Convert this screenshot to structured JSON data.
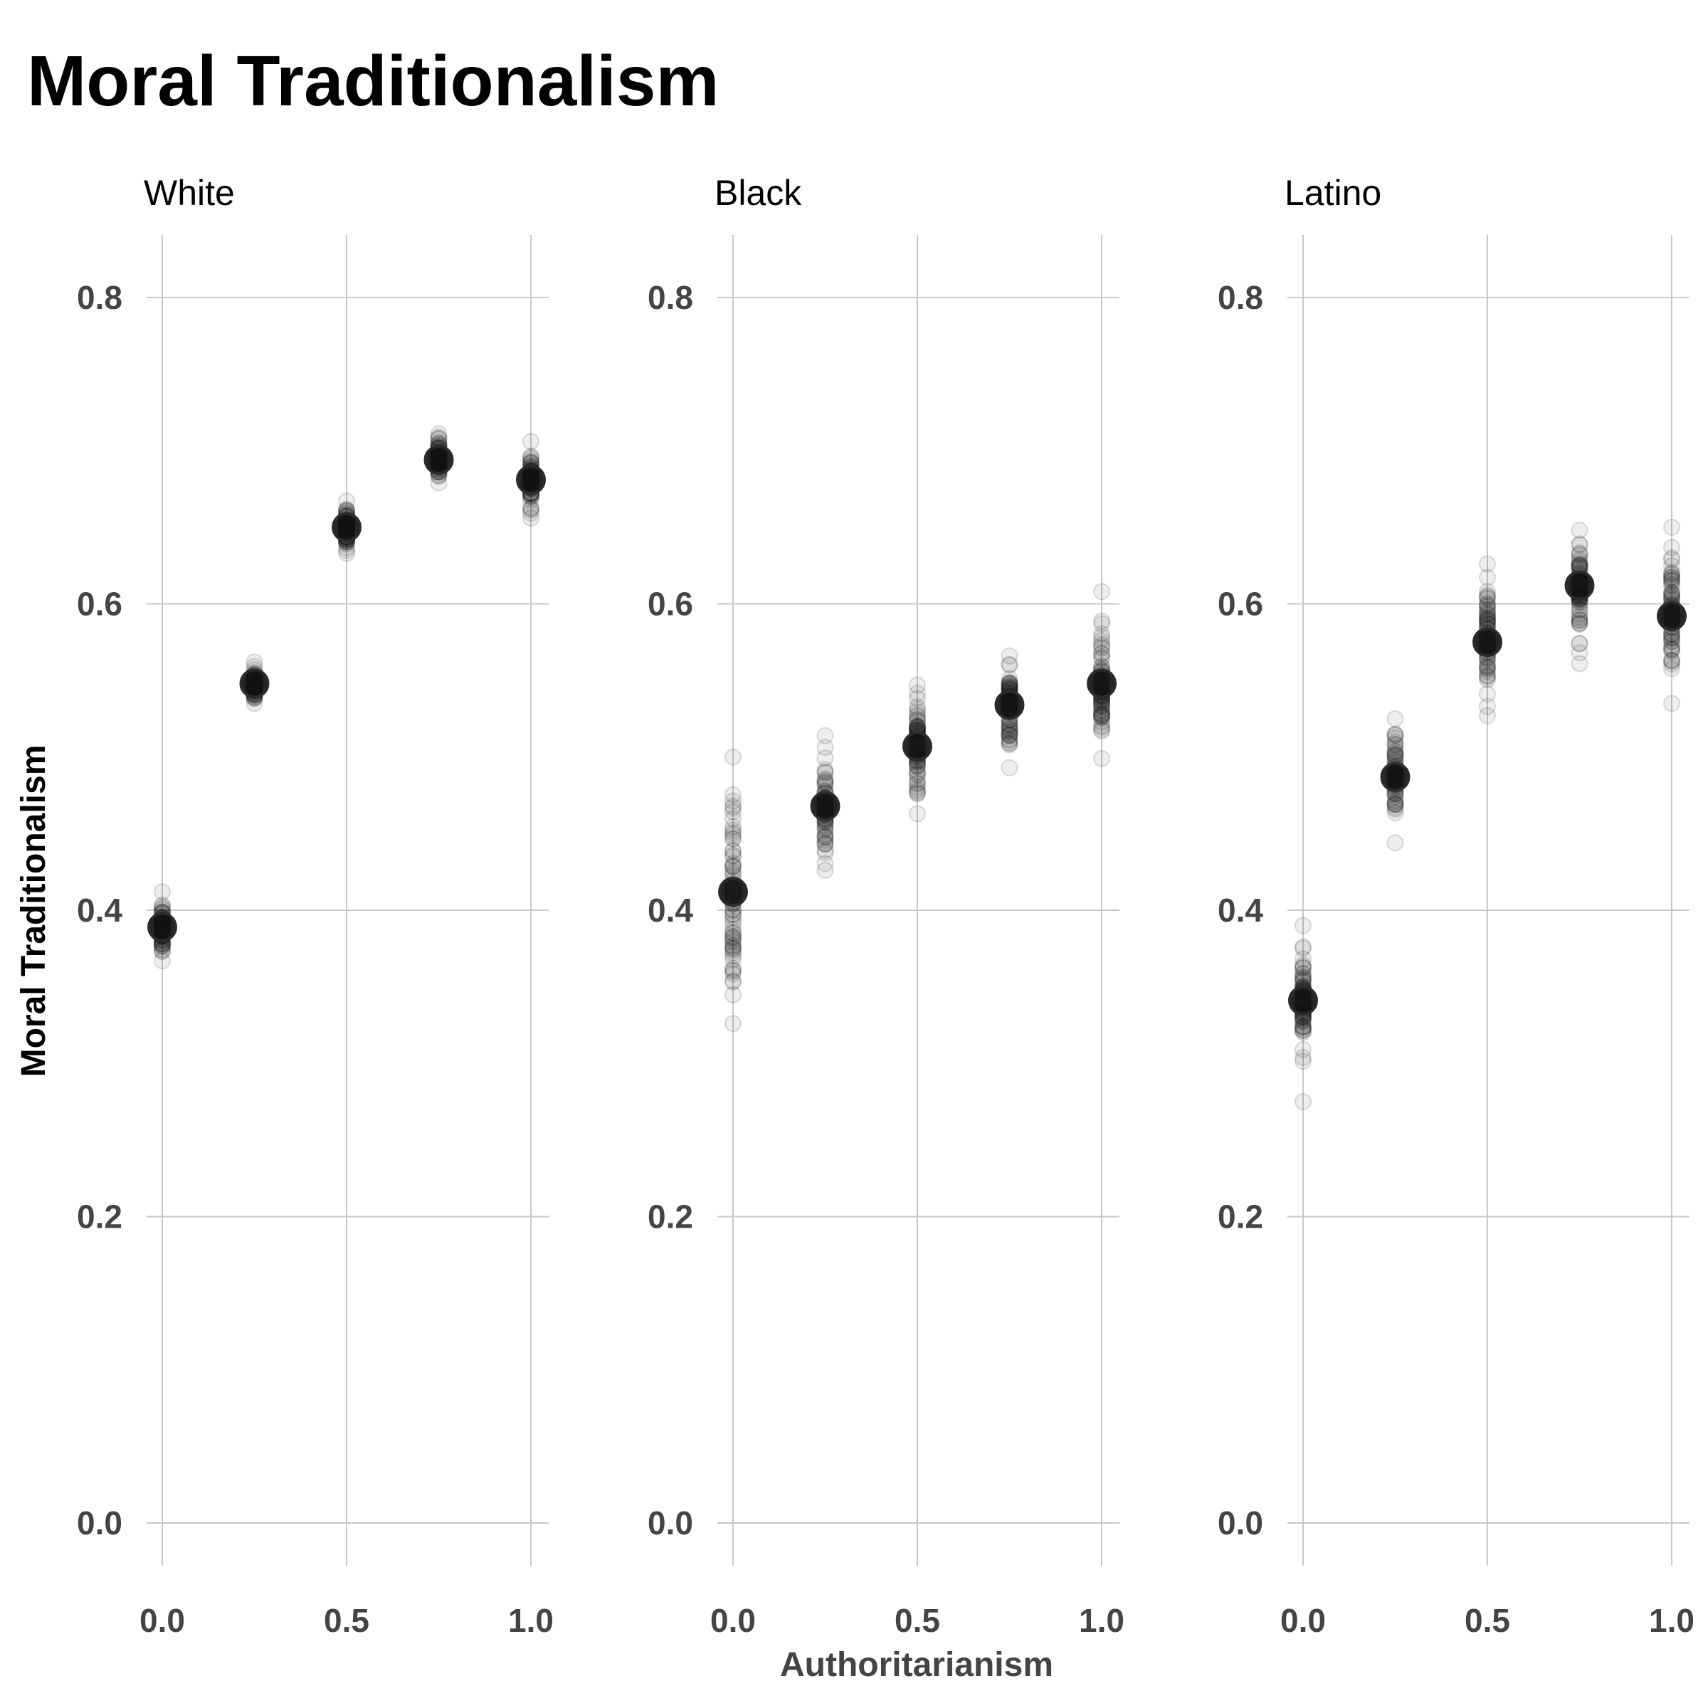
{
  "chart_data": {
    "type": "scatter",
    "title": "Moral Traditionalism",
    "xlabel": "Authoritarianism",
    "ylabel": "Moral Traditionalism",
    "xlim": [
      0,
      1
    ],
    "ylim": [
      0,
      0.8
    ],
    "x_ticks": [
      "0.0",
      "0.5",
      "1.0"
    ],
    "y_ticks": [
      "0.0",
      "0.2",
      "0.4",
      "0.6",
      "0.8"
    ],
    "grid": true,
    "point_color": "#111111",
    "panels": [
      {
        "label": "White",
        "points": [
          {
            "x": 0.0,
            "y": 0.389,
            "spread": [
              0.367,
              0.412
            ]
          },
          {
            "x": 0.25,
            "y": 0.548,
            "spread": [
              0.535,
              0.562
            ]
          },
          {
            "x": 0.5,
            "y": 0.65,
            "spread": [
              0.633,
              0.667
            ]
          },
          {
            "x": 0.75,
            "y": 0.694,
            "spread": [
              0.679,
              0.711
            ]
          },
          {
            "x": 1.0,
            "y": 0.681,
            "spread": [
              0.656,
              0.706
            ]
          }
        ]
      },
      {
        "label": "Black",
        "points": [
          {
            "x": 0.0,
            "y": 0.412,
            "spread": [
              0.326,
              0.5
            ]
          },
          {
            "x": 0.25,
            "y": 0.468,
            "spread": [
              0.426,
              0.514
            ]
          },
          {
            "x": 0.5,
            "y": 0.507,
            "spread": [
              0.463,
              0.547
            ]
          },
          {
            "x": 0.75,
            "y": 0.534,
            "spread": [
              0.493,
              0.566
            ]
          },
          {
            "x": 1.0,
            "y": 0.548,
            "spread": [
              0.499,
              0.608
            ]
          }
        ]
      },
      {
        "label": "Latino",
        "points": [
          {
            "x": 0.0,
            "y": 0.341,
            "spread": [
              0.275,
              0.39
            ]
          },
          {
            "x": 0.25,
            "y": 0.487,
            "spread": [
              0.444,
              0.525
            ]
          },
          {
            "x": 0.5,
            "y": 0.575,
            "spread": [
              0.527,
              0.626
            ]
          },
          {
            "x": 0.75,
            "y": 0.612,
            "spread": [
              0.561,
              0.648
            ]
          },
          {
            "x": 1.0,
            "y": 0.592,
            "spread": [
              0.535,
              0.65
            ]
          }
        ]
      }
    ]
  }
}
